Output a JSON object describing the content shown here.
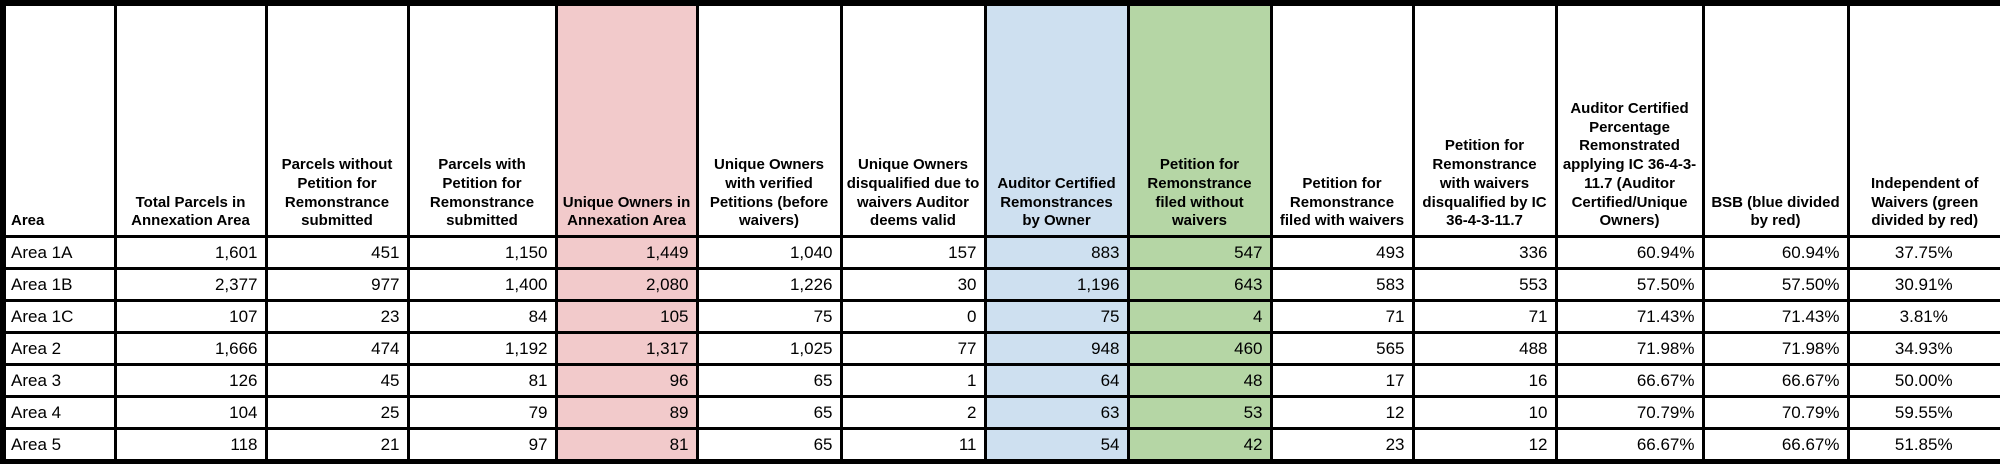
{
  "colors": {
    "pink": "#F2CACB",
    "blue": "#CEE0F0",
    "green": "#B5D6A5",
    "grid": "#000000"
  },
  "chart_data": {
    "type": "table",
    "columns": [
      {
        "label": "Area",
        "align": "left",
        "highlight": "none"
      },
      {
        "label": "Total Parcels in Annexation Area",
        "align": "right",
        "highlight": "none"
      },
      {
        "label": "Parcels without Petition for Remonstrance submitted",
        "align": "right",
        "highlight": "none"
      },
      {
        "label": "Parcels with Petition for Remonstrance submitted",
        "align": "right",
        "highlight": "none"
      },
      {
        "label": "Unique Owners in Annexation Area",
        "align": "right",
        "highlight": "pink"
      },
      {
        "label": "Unique Owners with verified Petitions (before waivers)",
        "align": "right",
        "highlight": "none"
      },
      {
        "label": "Unique Owners disqualified due to waivers Auditor deems valid",
        "align": "right",
        "highlight": "none"
      },
      {
        "label": "Auditor Certified Remonstrances by Owner",
        "align": "right",
        "highlight": "blue"
      },
      {
        "label": "Petition for Remonstrance filed without waivers",
        "align": "right",
        "highlight": "green"
      },
      {
        "label": "Petition for Remonstrance filed with waivers",
        "align": "right",
        "highlight": "none"
      },
      {
        "label": "Petition for Remonstrance with waivers disqualified by IC 36-4-3-11.7",
        "align": "right",
        "highlight": "none"
      },
      {
        "label": "Auditor Certified Percentage Remonstrated applying IC 36-4-3-11.7 (Auditor Certified/Unique Owners)",
        "align": "right",
        "highlight": "none"
      },
      {
        "label": "BSB (blue divided by red)",
        "align": "right",
        "highlight": "none"
      },
      {
        "label": "Independent of Waivers (green divided by red)",
        "align": "center",
        "highlight": "none"
      }
    ],
    "rows": [
      {
        "cells": [
          "Area 1A",
          "1,601",
          "451",
          "1,150",
          "1,449",
          "1,040",
          "157",
          "883",
          "547",
          "493",
          "336",
          "60.94%",
          "60.94%",
          "37.75%"
        ]
      },
      {
        "cells": [
          "Area 1B",
          "2,377",
          "977",
          "1,400",
          "2,080",
          "1,226",
          "30",
          "1,196",
          "643",
          "583",
          "553",
          "57.50%",
          "57.50%",
          "30.91%"
        ]
      },
      {
        "cells": [
          "Area 1C",
          "107",
          "23",
          "84",
          "105",
          "75",
          "0",
          "75",
          "4",
          "71",
          "71",
          "71.43%",
          "71.43%",
          "3.81%"
        ]
      },
      {
        "cells": [
          "Area 2",
          "1,666",
          "474",
          "1,192",
          "1,317",
          "1,025",
          "77",
          "948",
          "460",
          "565",
          "488",
          "71.98%",
          "71.98%",
          "34.93%"
        ]
      },
      {
        "cells": [
          "Area 3",
          "126",
          "45",
          "81",
          "96",
          "65",
          "1",
          "64",
          "48",
          "17",
          "16",
          "66.67%",
          "66.67%",
          "50.00%"
        ]
      },
      {
        "cells": [
          "Area 4",
          "104",
          "25",
          "79",
          "89",
          "65",
          "2",
          "63",
          "53",
          "12",
          "10",
          "70.79%",
          "70.79%",
          "59.55%"
        ]
      },
      {
        "cells": [
          "Area 5",
          "118",
          "21",
          "97",
          "81",
          "65",
          "11",
          "54",
          "42",
          "23",
          "12",
          "66.67%",
          "66.67%",
          "51.85%"
        ]
      }
    ]
  }
}
